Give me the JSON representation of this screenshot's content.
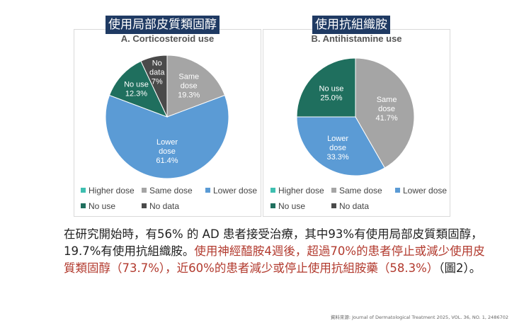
{
  "titles": {
    "chart_a_zh": "使用局部皮質類固醇",
    "chart_b_zh": "使用抗組織胺"
  },
  "chart_data": [
    {
      "type": "pie",
      "title": "A. Corticosteroid use",
      "slices": [
        {
          "label": "Higher dose",
          "value": 0,
          "display": "",
          "color": "#3fbfb0"
        },
        {
          "label": "Same dose",
          "value": 19.3,
          "display": "Same\ndose\n19.3%",
          "color": "#a5a5a5"
        },
        {
          "label": "Lower dose",
          "value": 61.4,
          "display": "Lower\ndose\n61.4%",
          "color": "#5b9bd5"
        },
        {
          "label": "No use",
          "value": 12.3,
          "display": "No use\n12.3%",
          "color": "#1f6f5e"
        },
        {
          "label": "No data",
          "value": 7.0,
          "display": "No\ndata\n7%",
          "color": "#4a4a4a"
        }
      ],
      "legend": [
        "Higher dose",
        "Same dose",
        "Lower dose",
        "No use",
        "No data"
      ]
    },
    {
      "type": "pie",
      "title": "B. Antihistamine use",
      "slices": [
        {
          "label": "Higher dose",
          "value": 0,
          "display": "",
          "color": "#3fbfb0"
        },
        {
          "label": "Same dose",
          "value": 41.7,
          "display": "Same\ndose\n41.7%",
          "color": "#a5a5a5"
        },
        {
          "label": "Lower dose",
          "value": 33.3,
          "display": "Lower\ndose\n33.3%",
          "color": "#5b9bd5"
        },
        {
          "label": "No use",
          "value": 25.0,
          "display": "No use\n25.0%",
          "color": "#1f6f5e"
        },
        {
          "label": "No data",
          "value": 0,
          "display": "",
          "color": "#4a4a4a"
        }
      ],
      "legend": [
        "Higher dose",
        "Same dose",
        "Lower dose",
        "No use",
        "No data"
      ]
    }
  ],
  "body": {
    "normal": "在研究開始時，有56% 的 AD 患者接受治療，其中93%有使用局部皮質類固醇，19.7%有使用抗組織胺。",
    "highlight": "使用神經醯胺4週後，超過70%的患者停止或減少使用皮質類固醇（73.7%），近60%的患者減少或停止使用抗組胺藥（58.3%）",
    "tail": "（圖2）。"
  },
  "source": "資料來源: Journal of Dermatological Treatment 2025, VOL. 36, NO. 1, 2486702"
}
